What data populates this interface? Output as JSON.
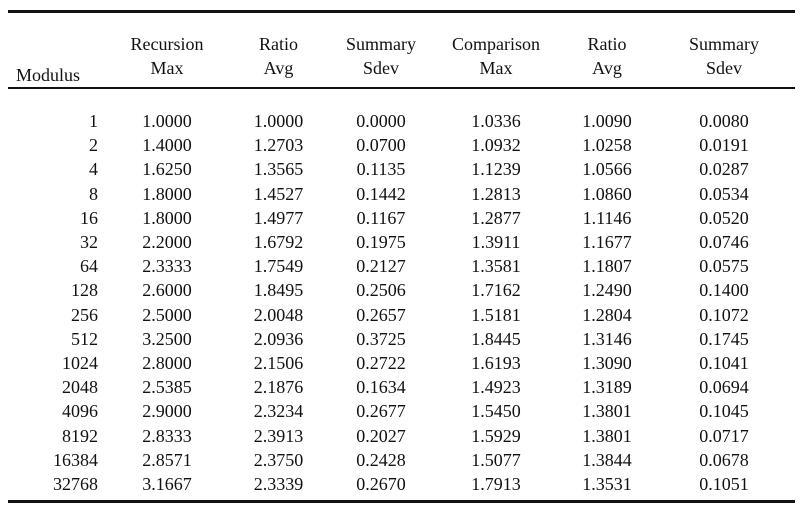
{
  "table": {
    "headers": [
      {
        "line1": "",
        "line2": "Modulus"
      },
      {
        "line1": "Recursion",
        "line2": "Max"
      },
      {
        "line1": "Ratio",
        "line2": "Avg"
      },
      {
        "line1": "Summary",
        "line2": "Sdev"
      },
      {
        "line1": "Comparison",
        "line2": "Max"
      },
      {
        "line1": "Ratio",
        "line2": "Avg"
      },
      {
        "line1": "Summary",
        "line2": "Sdev"
      }
    ],
    "rows": [
      [
        "1",
        "1.0000",
        "1.0000",
        "0.0000",
        "1.0336",
        "1.0090",
        "0.0080"
      ],
      [
        "2",
        "1.4000",
        "1.2703",
        "0.0700",
        "1.0932",
        "1.0258",
        "0.0191"
      ],
      [
        "4",
        "1.6250",
        "1.3565",
        "0.1135",
        "1.1239",
        "1.0566",
        "0.0287"
      ],
      [
        "8",
        "1.8000",
        "1.4527",
        "0.1442",
        "1.2813",
        "1.0860",
        "0.0534"
      ],
      [
        "16",
        "1.8000",
        "1.4977",
        "0.1167",
        "1.2877",
        "1.1146",
        "0.0520"
      ],
      [
        "32",
        "2.2000",
        "1.6792",
        "0.1975",
        "1.3911",
        "1.1677",
        "0.0746"
      ],
      [
        "64",
        "2.3333",
        "1.7549",
        "0.2127",
        "1.3581",
        "1.1807",
        "0.0575"
      ],
      [
        "128",
        "2.6000",
        "1.8495",
        "0.2506",
        "1.7162",
        "1.2490",
        "0.1400"
      ],
      [
        "256",
        "2.5000",
        "2.0048",
        "0.2657",
        "1.5181",
        "1.2804",
        "0.1072"
      ],
      [
        "512",
        "3.2500",
        "2.0936",
        "0.3725",
        "1.8445",
        "1.3146",
        "0.1745"
      ],
      [
        "1024",
        "2.8000",
        "2.1506",
        "0.2722",
        "1.6193",
        "1.3090",
        "0.1041"
      ],
      [
        "2048",
        "2.5385",
        "2.1876",
        "0.1634",
        "1.4923",
        "1.3189",
        "0.0694"
      ],
      [
        "4096",
        "2.9000",
        "2.3234",
        "0.2677",
        "1.5450",
        "1.3801",
        "0.1045"
      ],
      [
        "8192",
        "2.8333",
        "2.3913",
        "0.2027",
        "1.5929",
        "1.3801",
        "0.0717"
      ],
      [
        "16384",
        "2.8571",
        "2.3750",
        "0.2428",
        "1.5077",
        "1.3844",
        "0.0678"
      ],
      [
        "32768",
        "3.1667",
        "2.3339",
        "0.2670",
        "1.7913",
        "1.3531",
        "0.1051"
      ]
    ]
  }
}
